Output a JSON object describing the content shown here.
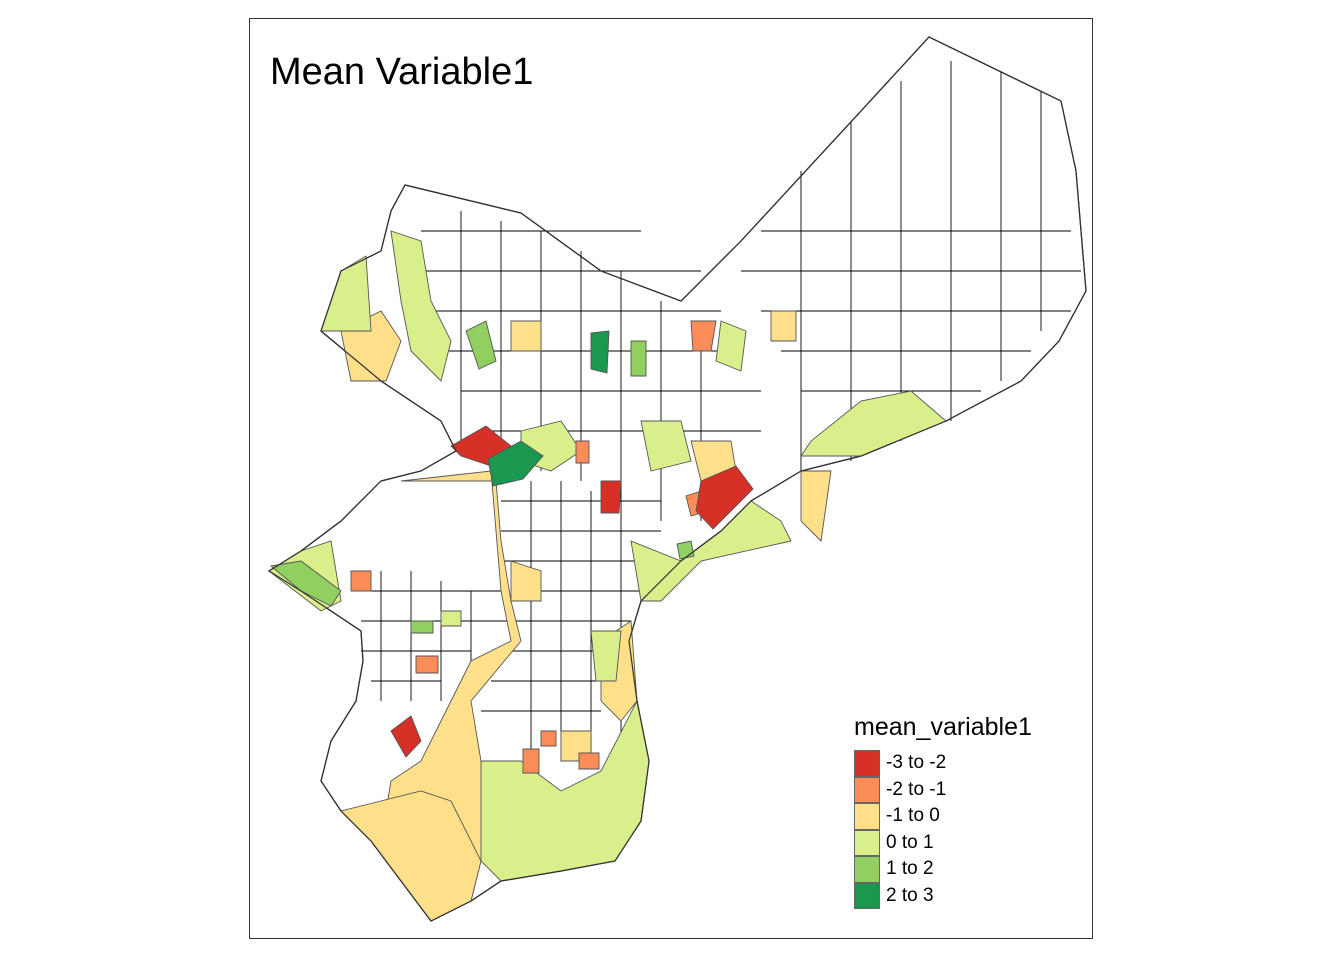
{
  "map": {
    "title": "Mean Variable1"
  },
  "legend": {
    "title": "mean_variable1",
    "items": [
      {
        "label": "-3 to -2",
        "color": "#d73027"
      },
      {
        "label": "-2 to -1",
        "color": "#fc8d59"
      },
      {
        "label": "-1 to 0",
        "color": "#fee08b"
      },
      {
        "label": "0 to 1",
        "color": "#d9ef8b"
      },
      {
        "label": "1 to 2",
        "color": "#91cf60"
      },
      {
        "label": "2 to 3",
        "color": "#1a9850"
      }
    ]
  }
}
